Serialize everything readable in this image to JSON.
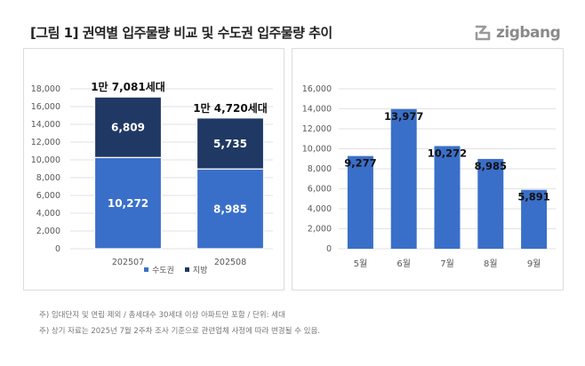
{
  "title": "[그림 1] 권역별 입주물량 비교 및 수도권 입주물량 추이",
  "logo": {
    "text": "zigbang",
    "icon": "zigbang-logo-icon"
  },
  "colors": {
    "capital": "#3a6fc9",
    "local": "#203864",
    "bar": "#3a6fc9",
    "grid": "#d9d9d9",
    "axis_text": "#595959"
  },
  "legend": [
    {
      "label": "수도권",
      "color": "#3a6fc9"
    },
    {
      "label": "지방",
      "color": "#203864"
    }
  ],
  "notes": [
    "주) 임대단지 및 연립 제외 / 총세대수 30세대 이상 아파트만 포함 / 단위: 세대",
    "주) 상기 자료는 2025년 7월 2주차 조사 기준으로 관련업체 사정에 따라 변경될 수 있음."
  ],
  "chart_data": [
    {
      "type": "bar",
      "stacked": true,
      "categories": [
        "202507",
        "202508"
      ],
      "series": [
        {
          "name": "수도권",
          "values": [
            10272,
            8985
          ],
          "labels": [
            "10,272",
            "8,985"
          ]
        },
        {
          "name": "지방",
          "values": [
            6809,
            5735
          ],
          "labels": [
            "6,809",
            "5,735"
          ]
        }
      ],
      "totals": [
        "1만 7,081세대",
        "1만 4,720세대"
      ],
      "ylim": [
        0,
        18000
      ],
      "yticks": [
        "0",
        "2,000",
        "4,000",
        "6,000",
        "8,000",
        "10,000",
        "12,000",
        "14,000",
        "16,000",
        "18,000"
      ],
      "grid": true,
      "legend": "bottom"
    },
    {
      "type": "bar",
      "categories": [
        "5월",
        "6월",
        "7월",
        "8월",
        "9월"
      ],
      "values": [
        9277,
        13977,
        10272,
        8985,
        5891
      ],
      "labels": [
        "9,277",
        "13,977",
        "10,272",
        "8,985",
        "5,891"
      ],
      "ylim": [
        0,
        16000
      ],
      "yticks": [
        "0",
        "2,000",
        "4,000",
        "6,000",
        "8,000",
        "10,000",
        "12,000",
        "14,000",
        "16,000"
      ],
      "grid": true
    }
  ]
}
